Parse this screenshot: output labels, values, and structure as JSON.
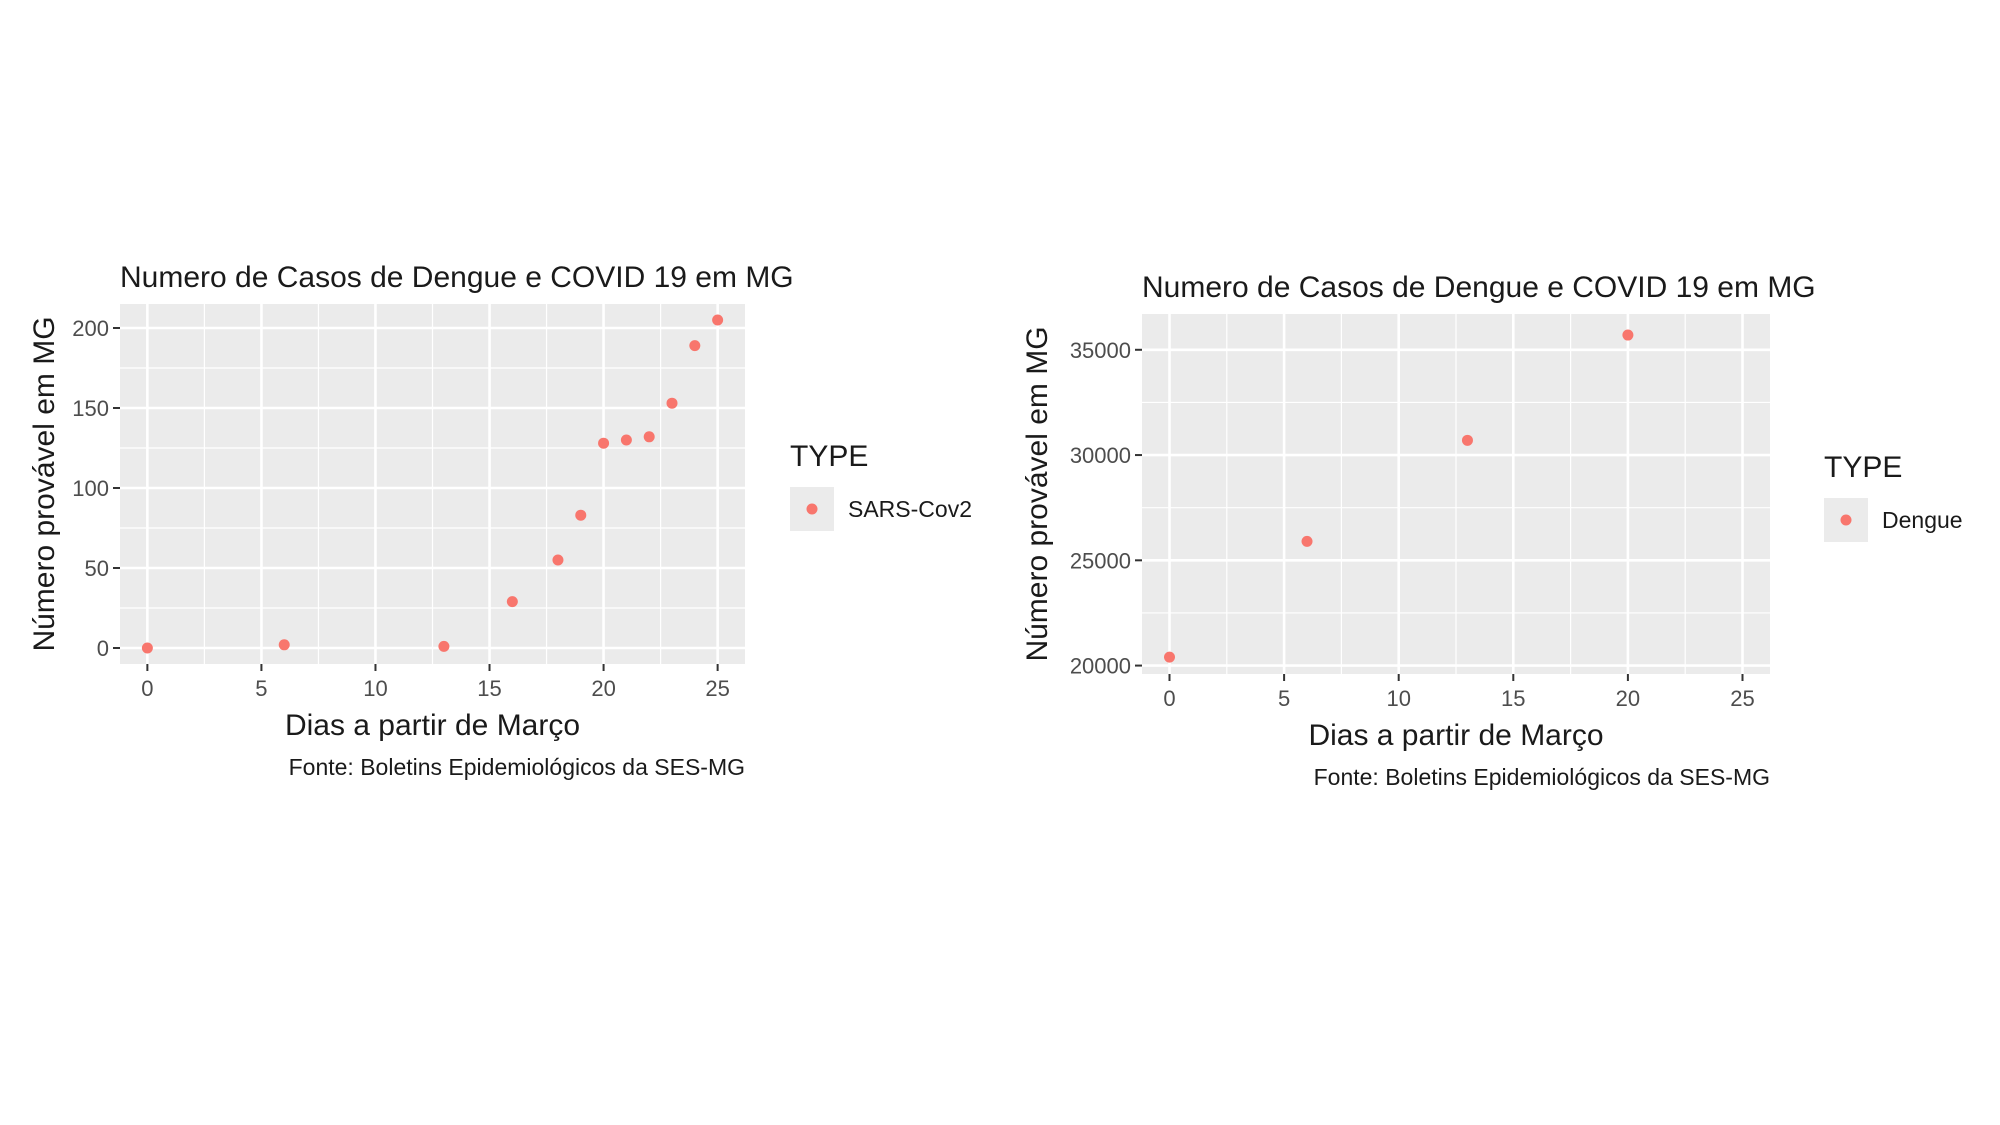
{
  "colors": {
    "panel_bg": "#ebebeb",
    "grid_major": "#ffffff",
    "point": "#f8766d",
    "tick": "#333333"
  },
  "chart_data": [
    {
      "type": "scatter",
      "title": "Numero de Casos de Dengue e COVID 19 em MG",
      "xlabel": "Dias a partir de Março",
      "ylabel": "Número provável em MG",
      "caption": "Fonte: Boletins Epidemiológicos da SES-MG",
      "xlim": [
        -1.2,
        26.2
      ],
      "ylim": [
        -10,
        215
      ],
      "x_ticks": [
        0,
        5,
        10,
        15,
        20,
        25
      ],
      "x_tick_labels": [
        "0",
        "5",
        "10",
        "15",
        "20",
        "25"
      ],
      "y_ticks": [
        0,
        50,
        100,
        150,
        200
      ],
      "y_tick_labels": [
        "0",
        "50",
        "100",
        "150",
        "200"
      ],
      "grid": true,
      "legend": {
        "title": "TYPE",
        "placement": "right"
      },
      "series": [
        {
          "name": "SARS-Cov2",
          "color": "#f8766d",
          "x": [
            0,
            6,
            13,
            16,
            18,
            19,
            20,
            21,
            22,
            23,
            24,
            25
          ],
          "y": [
            0,
            2,
            1,
            29,
            55,
            83,
            128,
            130,
            132,
            153,
            189,
            205
          ]
        }
      ]
    },
    {
      "type": "scatter",
      "title": "Numero de Casos de Dengue e COVID 19 em MG",
      "xlabel": "Dias a partir de Março",
      "ylabel": "Número provável em MG",
      "caption": "Fonte: Boletins Epidemiológicos da SES-MG",
      "xlim": [
        -1.2,
        26.2
      ],
      "ylim": [
        19600,
        36700
      ],
      "x_ticks": [
        0,
        5,
        10,
        15,
        20,
        25
      ],
      "x_tick_labels": [
        "0",
        "5",
        "10",
        "15",
        "20",
        "25"
      ],
      "y_ticks": [
        20000,
        25000,
        30000,
        35000
      ],
      "y_tick_labels": [
        "20000",
        "25000",
        "30000",
        "35000"
      ],
      "grid": true,
      "legend": {
        "title": "TYPE",
        "placement": "right"
      },
      "series": [
        {
          "name": "Dengue",
          "color": "#f8766d",
          "x": [
            0,
            6,
            13,
            20
          ],
          "y": [
            20400,
            25900,
            30700,
            35700
          ]
        }
      ]
    }
  ]
}
